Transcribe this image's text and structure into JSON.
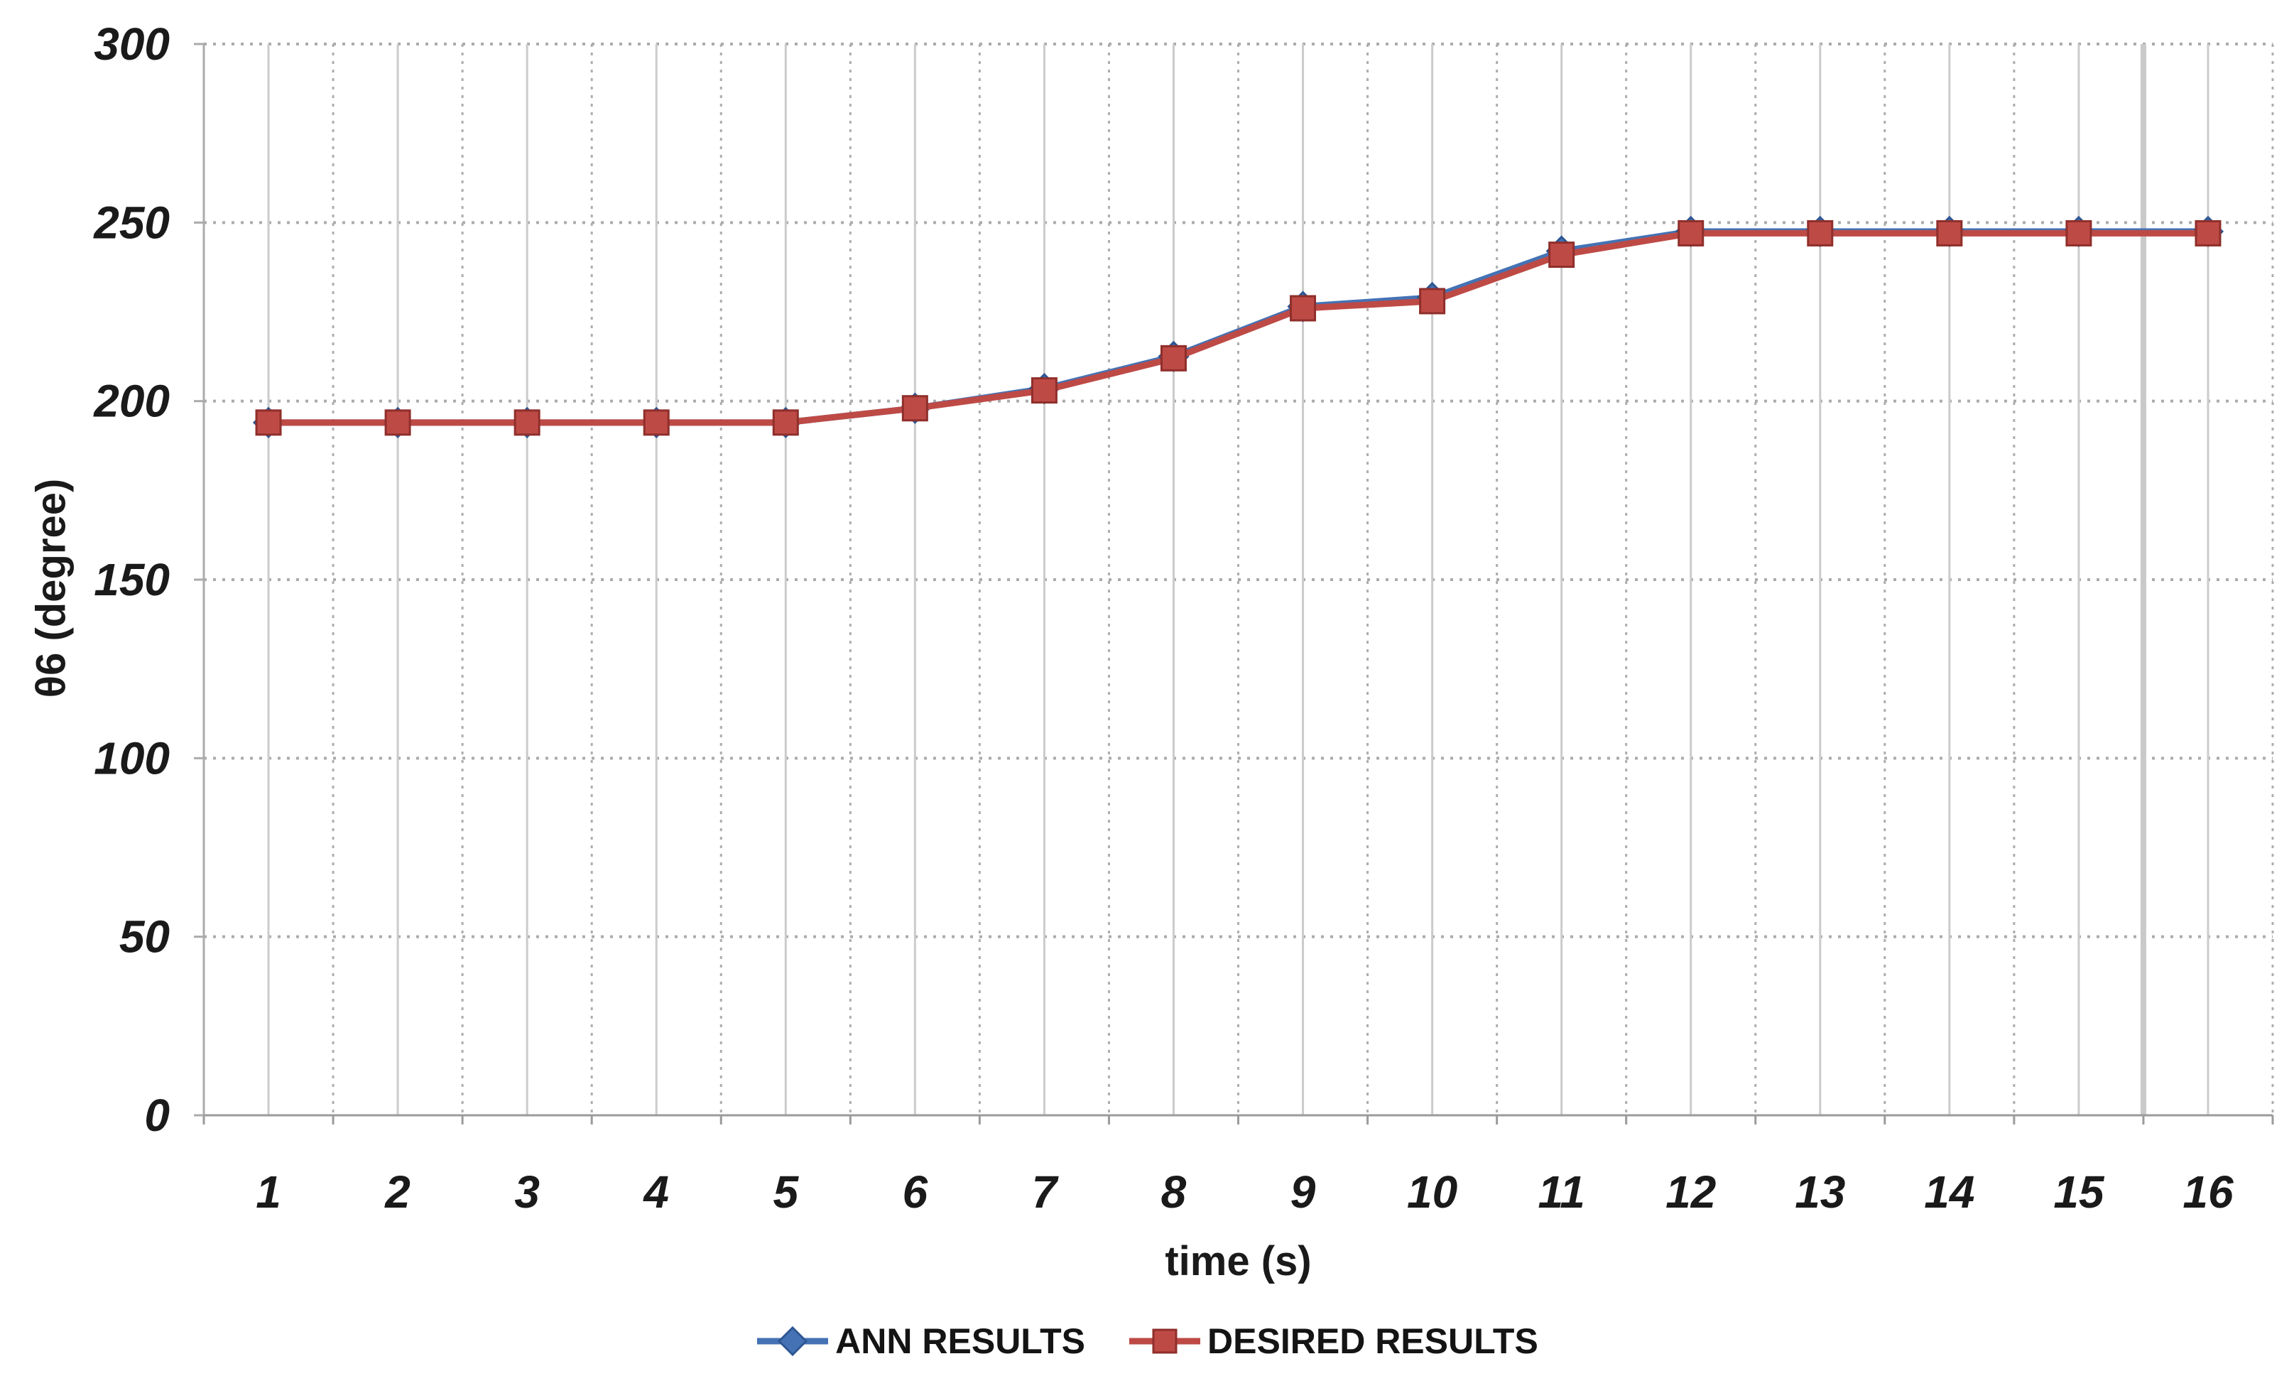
{
  "chart_data": {
    "type": "line",
    "title": "",
    "xlabel": "time (s)",
    "ylabel": "θ6 (degree)",
    "categories": [
      1,
      2,
      3,
      4,
      5,
      6,
      7,
      8,
      9,
      10,
      11,
      12,
      13,
      14,
      15,
      16
    ],
    "ylim": [
      0,
      300
    ],
    "ytick_step": 50,
    "grid": true,
    "legend_position": "bottom",
    "series": [
      {
        "name": "ANN RESULTS",
        "marker": "diamond",
        "color": "#4472B4",
        "marker_stroke": "#2E5693",
        "values": [
          194,
          194,
          194,
          194,
          194,
          198,
          203.5,
          212.5,
          226.5,
          229,
          242,
          247.5,
          247.5,
          247.5,
          247.5,
          247.5
        ]
      },
      {
        "name": "DESIRED RESULTS",
        "marker": "square",
        "color": "#BE4A46",
        "marker_stroke": "#8F2F2B",
        "values": [
          194,
          194,
          194,
          194,
          194,
          198,
          203,
          212,
          226,
          228,
          241,
          247,
          247,
          247,
          247,
          247
        ]
      }
    ]
  },
  "style": {
    "background": "#FFFFFF",
    "text_color": "#1A1A1A",
    "axis_color": "#9B9B9B",
    "y_axis_color": "#ABABAB",
    "h_grid_color": "#ABABAB",
    "v_grid_center_color": "#CBCBCB",
    "v_grid_boundary_color": "#ADADAD",
    "v_grid_thick_color": "#C9C9C9",
    "line_width": 9
  }
}
